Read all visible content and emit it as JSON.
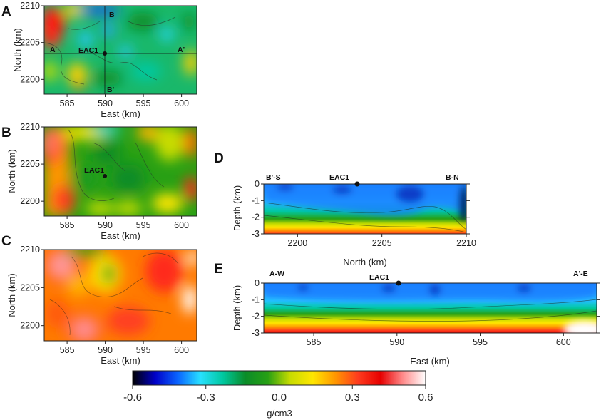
{
  "chart_data": [
    {
      "panel": "A",
      "type": "heatmap",
      "xlabel": "East (km)",
      "ylabel": "North (km)",
      "xlim": [
        582,
        602
      ],
      "ylim": [
        2198,
        2210
      ],
      "xticks": [
        585,
        590,
        595,
        600
      ],
      "yticks": [
        2200,
        2205,
        2210
      ],
      "profile_lines": [
        {
          "labels": [
            "A",
            "A'"
          ],
          "orientation": "east-west",
          "north": 2204
        },
        {
          "labels": [
            "B",
            "B'"
          ],
          "orientation": "north-south",
          "east": 589.7
        }
      ],
      "station": {
        "label": "EAC1",
        "east": 589.7,
        "north": 2204
      }
    },
    {
      "panel": "B",
      "type": "heatmap",
      "xlabel": "East (km)",
      "ylabel": "North (km)",
      "xlim": [
        582,
        602
      ],
      "ylim": [
        2198,
        2210
      ],
      "xticks": [
        585,
        590,
        595,
        600
      ],
      "yticks": [
        2200,
        2205,
        2210
      ],
      "station": {
        "label": "EAC1",
        "east": 589.7,
        "north": 2203.7
      }
    },
    {
      "panel": "C",
      "type": "heatmap",
      "xlabel": "East (km)",
      "ylabel": "North (km)",
      "xlim": [
        582,
        602
      ],
      "ylim": [
        2198,
        2210
      ],
      "xticks": [
        585,
        590,
        595,
        600
      ],
      "yticks": [
        2200,
        2205,
        2210
      ]
    },
    {
      "panel": "D",
      "type": "heatmap",
      "xlabel": "North (km)",
      "ylabel": "Depth (km)",
      "xlim": [
        2198,
        2210
      ],
      "ylim": [
        -3,
        0
      ],
      "xticks": [
        2200,
        2205,
        2210
      ],
      "yticks": [
        0,
        -1,
        -2,
        -3
      ],
      "end_labels": [
        "B'-S",
        "B-N"
      ],
      "station": {
        "label": "EAC1",
        "x": 2204
      }
    },
    {
      "panel": "E",
      "type": "heatmap",
      "xlabel": "East (km)",
      "ylabel": "Depth (km)",
      "xlim": [
        582,
        602
      ],
      "ylim": [
        -3,
        0
      ],
      "xticks": [
        585,
        590,
        595,
        600
      ],
      "yticks": [
        0,
        -1,
        -2,
        -3
      ],
      "end_labels": [
        "A-W",
        "A'-E"
      ],
      "station": {
        "label": "EAC1",
        "x": 590
      }
    }
  ],
  "colorbar": {
    "label": "g/cm3",
    "ticks": [
      "-0.6",
      "-0.3",
      "0.0",
      "0.3",
      "0.6"
    ],
    "range": [
      -0.6,
      0.6
    ],
    "colors": [
      "#000000",
      "#0000c8",
      "#0a64ff",
      "#28e0ff",
      "#00c8a0",
      "#0a8c28",
      "#28a014",
      "#c8dc00",
      "#ffe600",
      "#ff9600",
      "#ff3c1e",
      "#e60000",
      "#ff8c8c",
      "#ffffff"
    ]
  }
}
